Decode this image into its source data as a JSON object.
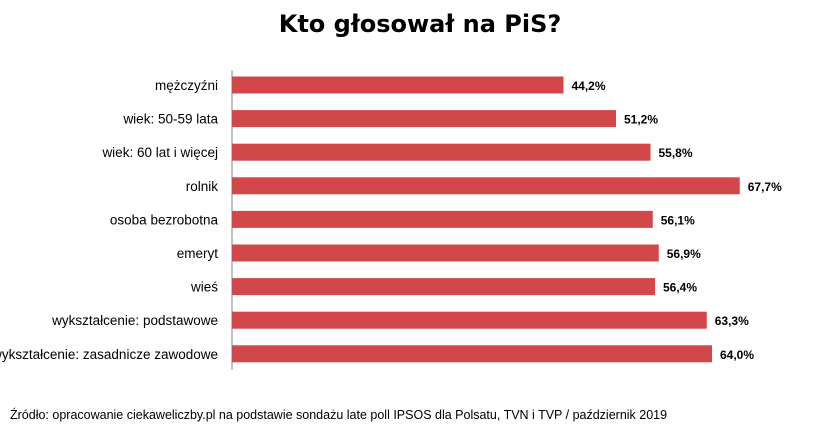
{
  "chart_data": {
    "type": "bar",
    "orientation": "horizontal",
    "title": "Kto głosował na PiS?",
    "categories": [
      "mężczyźni",
      "wiek: 50-59 lata",
      "wiek: 60 lat i więcej",
      "rolnik",
      "osoba bezrobotna",
      "emeryt",
      "wieś",
      "wykształcenie: podstawowe",
      "wykształcenie: zasadnicze zawodowe"
    ],
    "values": [
      44.2,
      51.2,
      55.8,
      67.7,
      56.1,
      56.9,
      56.4,
      63.3,
      64.0
    ],
    "value_labels": [
      "44,2%",
      "51,2%",
      "55,8%",
      "67,7%",
      "56,1%",
      "56,9%",
      "56,4%",
      "63,3%",
      "64,0%"
    ],
    "bar_color": "#d1474a",
    "axis_color": "#9a9a9a",
    "xlim": [
      0,
      68
    ],
    "grid": false,
    "legend": "none"
  },
  "source_note": "Źródło: opracowanie ciekaweliczby.pl na podstawie sondażu late poll IPSOS dla Polsatu, TVN i TVP / październik 2019"
}
